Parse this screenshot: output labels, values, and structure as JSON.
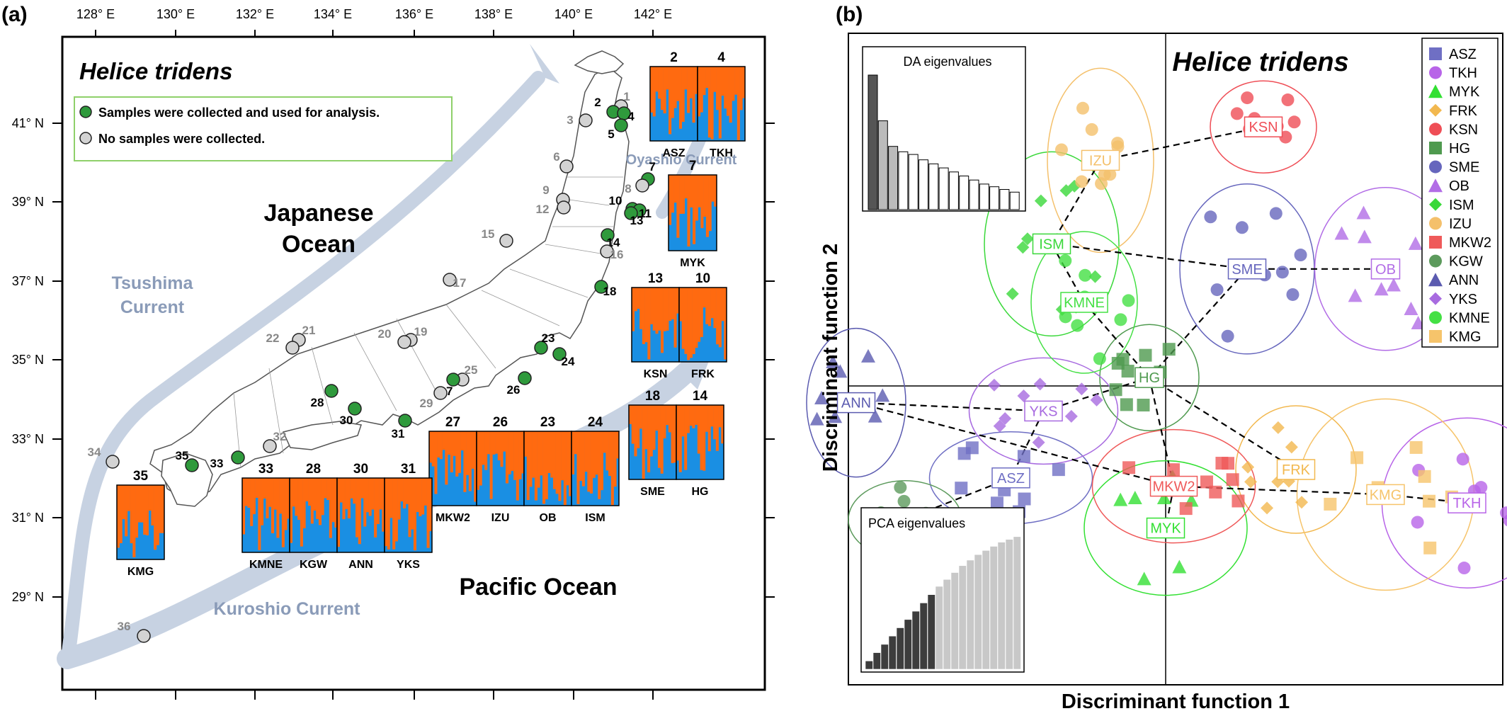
{
  "panel_a": {
    "letter": "(a)",
    "species": "Helice tridens",
    "legend": {
      "collected": "Samples were collected and used for analysis.",
      "not_collected": "No samples were collected."
    },
    "seas": {
      "japan_1": "Japanese",
      "japan_2": "Ocean",
      "pacific": "Pacific Ocean"
    },
    "currents": {
      "tsushima_1": "Tsushima",
      "tsushima_2": "Current",
      "kuroshio": "Kuroshio Current",
      "oyashio": "Oyashio Current"
    },
    "lon_ticks": [
      "128° E",
      "130° E",
      "132° E",
      "134° E",
      "136° E",
      "138° E",
      "140° E",
      "142° E"
    ],
    "lat_ticks": [
      "41° N",
      "39° N",
      "37° N",
      "35° N",
      "33° N",
      "31° N",
      "29° N"
    ],
    "sites": [
      {
        "id": "1",
        "collected": false
      },
      {
        "id": "2",
        "collected": true
      },
      {
        "id": "3",
        "collected": false
      },
      {
        "id": "4",
        "collected": true
      },
      {
        "id": "5",
        "collected": true
      },
      {
        "id": "6",
        "collected": false
      },
      {
        "id": "7",
        "collected": true
      },
      {
        "id": "8",
        "collected": false
      },
      {
        "id": "9",
        "collected": false
      },
      {
        "id": "10",
        "collected": true
      },
      {
        "id": "11",
        "collected": true
      },
      {
        "id": "12",
        "collected": false
      },
      {
        "id": "13",
        "collected": true
      },
      {
        "id": "14",
        "collected": true
      },
      {
        "id": "15",
        "collected": false
      },
      {
        "id": "16",
        "collected": false
      },
      {
        "id": "17",
        "collected": false
      },
      {
        "id": "18",
        "collected": true
      },
      {
        "id": "19",
        "collected": false
      },
      {
        "id": "20",
        "collected": false
      },
      {
        "id": "21",
        "collected": false
      },
      {
        "id": "22",
        "collected": false
      },
      {
        "id": "23",
        "collected": true
      },
      {
        "id": "24",
        "collected": true
      },
      {
        "id": "25",
        "collected": false
      },
      {
        "id": "26",
        "collected": true
      },
      {
        "id": "27",
        "collected": true
      },
      {
        "id": "28",
        "collected": true
      },
      {
        "id": "29",
        "collected": false
      },
      {
        "id": "30",
        "collected": true
      },
      {
        "id": "31",
        "collected": true
      },
      {
        "id": "32",
        "collected": false
      },
      {
        "id": "33",
        "collected": true
      },
      {
        "id": "34",
        "collected": false
      },
      {
        "id": "35",
        "collected": true
      },
      {
        "id": "36",
        "collected": false
      }
    ],
    "structure_groups": [
      {
        "panels": [
          {
            "num": "2",
            "code": "ASZ"
          },
          {
            "num": "4",
            "code": "TKH"
          }
        ]
      },
      {
        "panels": [
          {
            "num": "7",
            "code": "MYK"
          }
        ]
      },
      {
        "panels": [
          {
            "num": "13",
            "code": "KSN"
          },
          {
            "num": "10",
            "code": "FRK"
          }
        ]
      },
      {
        "panels": [
          {
            "num": "18",
            "code": "SME"
          },
          {
            "num": "14",
            "code": "HG"
          }
        ]
      },
      {
        "panels": [
          {
            "num": "27",
            "code": "MKW2"
          },
          {
            "num": "26",
            "code": "IZU"
          },
          {
            "num": "23",
            "code": "OB"
          },
          {
            "num": "24",
            "code": "ISM"
          }
        ]
      },
      {
        "panels": [
          {
            "num": "33",
            "code": "KMNE"
          },
          {
            "num": "28",
            "code": "KGW"
          },
          {
            "num": "30",
            "code": "ANN"
          },
          {
            "num": "31",
            "code": "YKS"
          }
        ]
      },
      {
        "panels": [
          {
            "num": "35",
            "code": "KMG"
          }
        ]
      }
    ],
    "cluster_colors": {
      "cluster_1": "#1a8fe3",
      "cluster_2": "#ff6a10"
    }
  },
  "panel_b": {
    "letter": "(b)",
    "species": "Helice tridens",
    "xlabel": "Discriminant function 1",
    "ylabel": "Discriminant function 2",
    "da_label": "DA eigenvalues",
    "pca_label": "PCA eigenvalues",
    "populations": [
      {
        "code": "ASZ",
        "color": "#6f6fc4",
        "shape": "square",
        "centroid": [
          -1.9,
          -1.1
        ]
      },
      {
        "code": "TKH",
        "color": "#b864e8",
        "shape": "circle",
        "centroid": [
          3.7,
          -1.4
        ]
      },
      {
        "code": "MYK",
        "color": "#33e033",
        "shape": "triangle",
        "centroid": [
          0.0,
          -1.7
        ]
      },
      {
        "code": "FRK",
        "color": "#f2b84f",
        "shape": "diamond",
        "centroid": [
          1.6,
          -1.0
        ]
      },
      {
        "code": "KSN",
        "color": "#ef4e56",
        "shape": "circle",
        "centroid": [
          1.2,
          3.1
        ]
      },
      {
        "code": "HG",
        "color": "#4f9a4f",
        "shape": "square",
        "centroid": [
          -0.2,
          0.1
        ]
      },
      {
        "code": "SME",
        "color": "#6666bd",
        "shape": "circle",
        "centroid": [
          1.0,
          1.4
        ]
      },
      {
        "code": "OB",
        "color": "#b26de6",
        "shape": "triangle",
        "centroid": [
          2.7,
          1.4
        ]
      },
      {
        "code": "ISM",
        "color": "#3ad83a",
        "shape": "diamond",
        "centroid": [
          -1.4,
          1.7
        ]
      },
      {
        "code": "IZU",
        "color": "#f4c06b",
        "shape": "circle",
        "centroid": [
          -0.8,
          2.7
        ]
      },
      {
        "code": "MKW2",
        "color": "#ef5a5a",
        "shape": "square",
        "centroid": [
          0.1,
          -1.2
        ]
      },
      {
        "code": "KGW",
        "color": "#5c9a5c",
        "shape": "circle",
        "centroid": [
          -3.2,
          -1.6
        ]
      },
      {
        "code": "ANN",
        "color": "#5b5bb0",
        "shape": "triangle",
        "centroid": [
          -3.8,
          -0.2
        ]
      },
      {
        "code": "YKS",
        "color": "#a86be0",
        "shape": "diamond",
        "centroid": [
          -1.5,
          -0.3
        ]
      },
      {
        "code": "KMNE",
        "color": "#44e044",
        "shape": "circle",
        "centroid": [
          -1.0,
          1.0
        ]
      },
      {
        "code": "KMG",
        "color": "#f6c46b",
        "shape": "square",
        "centroid": [
          2.7,
          -1.3
        ]
      }
    ],
    "da_eigenvalues": [
      100,
      66,
      47,
      43,
      41,
      37,
      34,
      31,
      28,
      25,
      22,
      19,
      17,
      15,
      13
    ],
    "pca_eigenvalues": [
      6,
      12,
      18,
      24,
      30,
      36,
      42,
      48,
      54,
      60,
      65,
      70,
      75,
      79,
      83,
      86,
      89,
      92,
      94,
      96
    ]
  }
}
